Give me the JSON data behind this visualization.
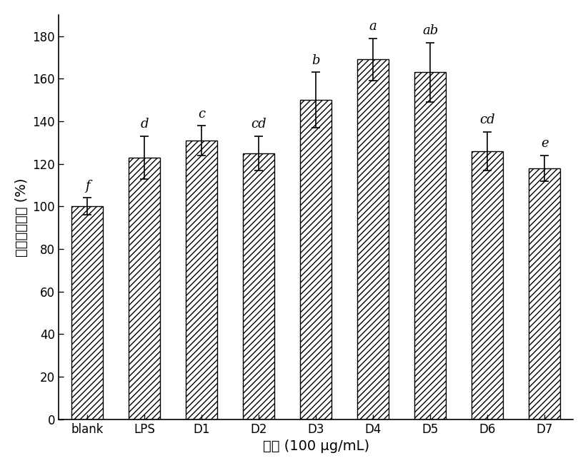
{
  "categories": [
    "blank",
    "LPS",
    "D1",
    "D2",
    "D3",
    "D4",
    "D5",
    "D6",
    "D7"
  ],
  "values": [
    100,
    123,
    131,
    125,
    150,
    169,
    163,
    126,
    118
  ],
  "errors": [
    4,
    10,
    7,
    8,
    13,
    10,
    14,
    9,
    6
  ],
  "labels": [
    "f",
    "d",
    "c",
    "cd",
    "b",
    "a",
    "ab",
    "cd",
    "e"
  ],
  "xlabel": "样品 (100 μg/mL)",
  "ylabel": "中性红胞饮率 (%)",
  "ylim": [
    0,
    190
  ],
  "yticks": [
    0,
    20,
    40,
    60,
    80,
    100,
    120,
    140,
    160,
    180
  ],
  "bar_color": "#ffffff",
  "hatch_pattern": "////",
  "edge_color": "#000000",
  "label_fontsize": 13,
  "tick_fontsize": 12,
  "axis_label_fontsize": 14,
  "bar_width": 0.55
}
